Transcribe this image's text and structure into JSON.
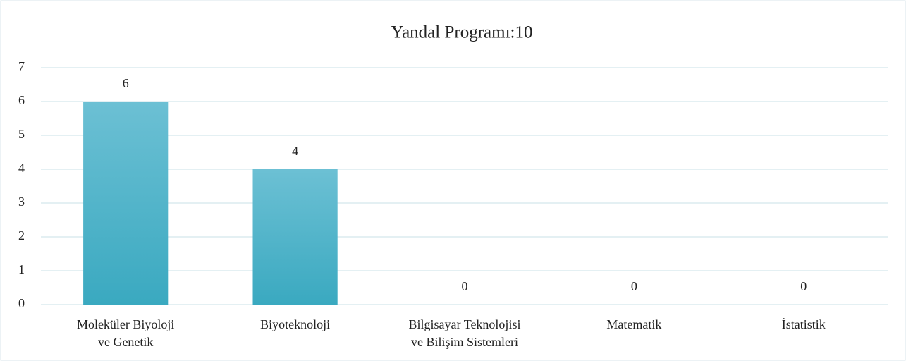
{
  "chart_data": {
    "type": "bar",
    "title": "Yandal Programı:10",
    "categories": [
      "Moleküler Biyoloji\nve Genetik",
      "Biyoteknoloji",
      "Bilgisayar Teknolojisi\nve Bilişim Sistemleri",
      "Matematik",
      "İstatistik"
    ],
    "values": [
      6,
      4,
      0,
      0,
      0
    ],
    "color": "#4bb8d0",
    "ylim": [
      0,
      7
    ],
    "yticks": [
      0,
      1,
      2,
      3,
      4,
      5,
      6,
      7
    ],
    "grid": true
  }
}
